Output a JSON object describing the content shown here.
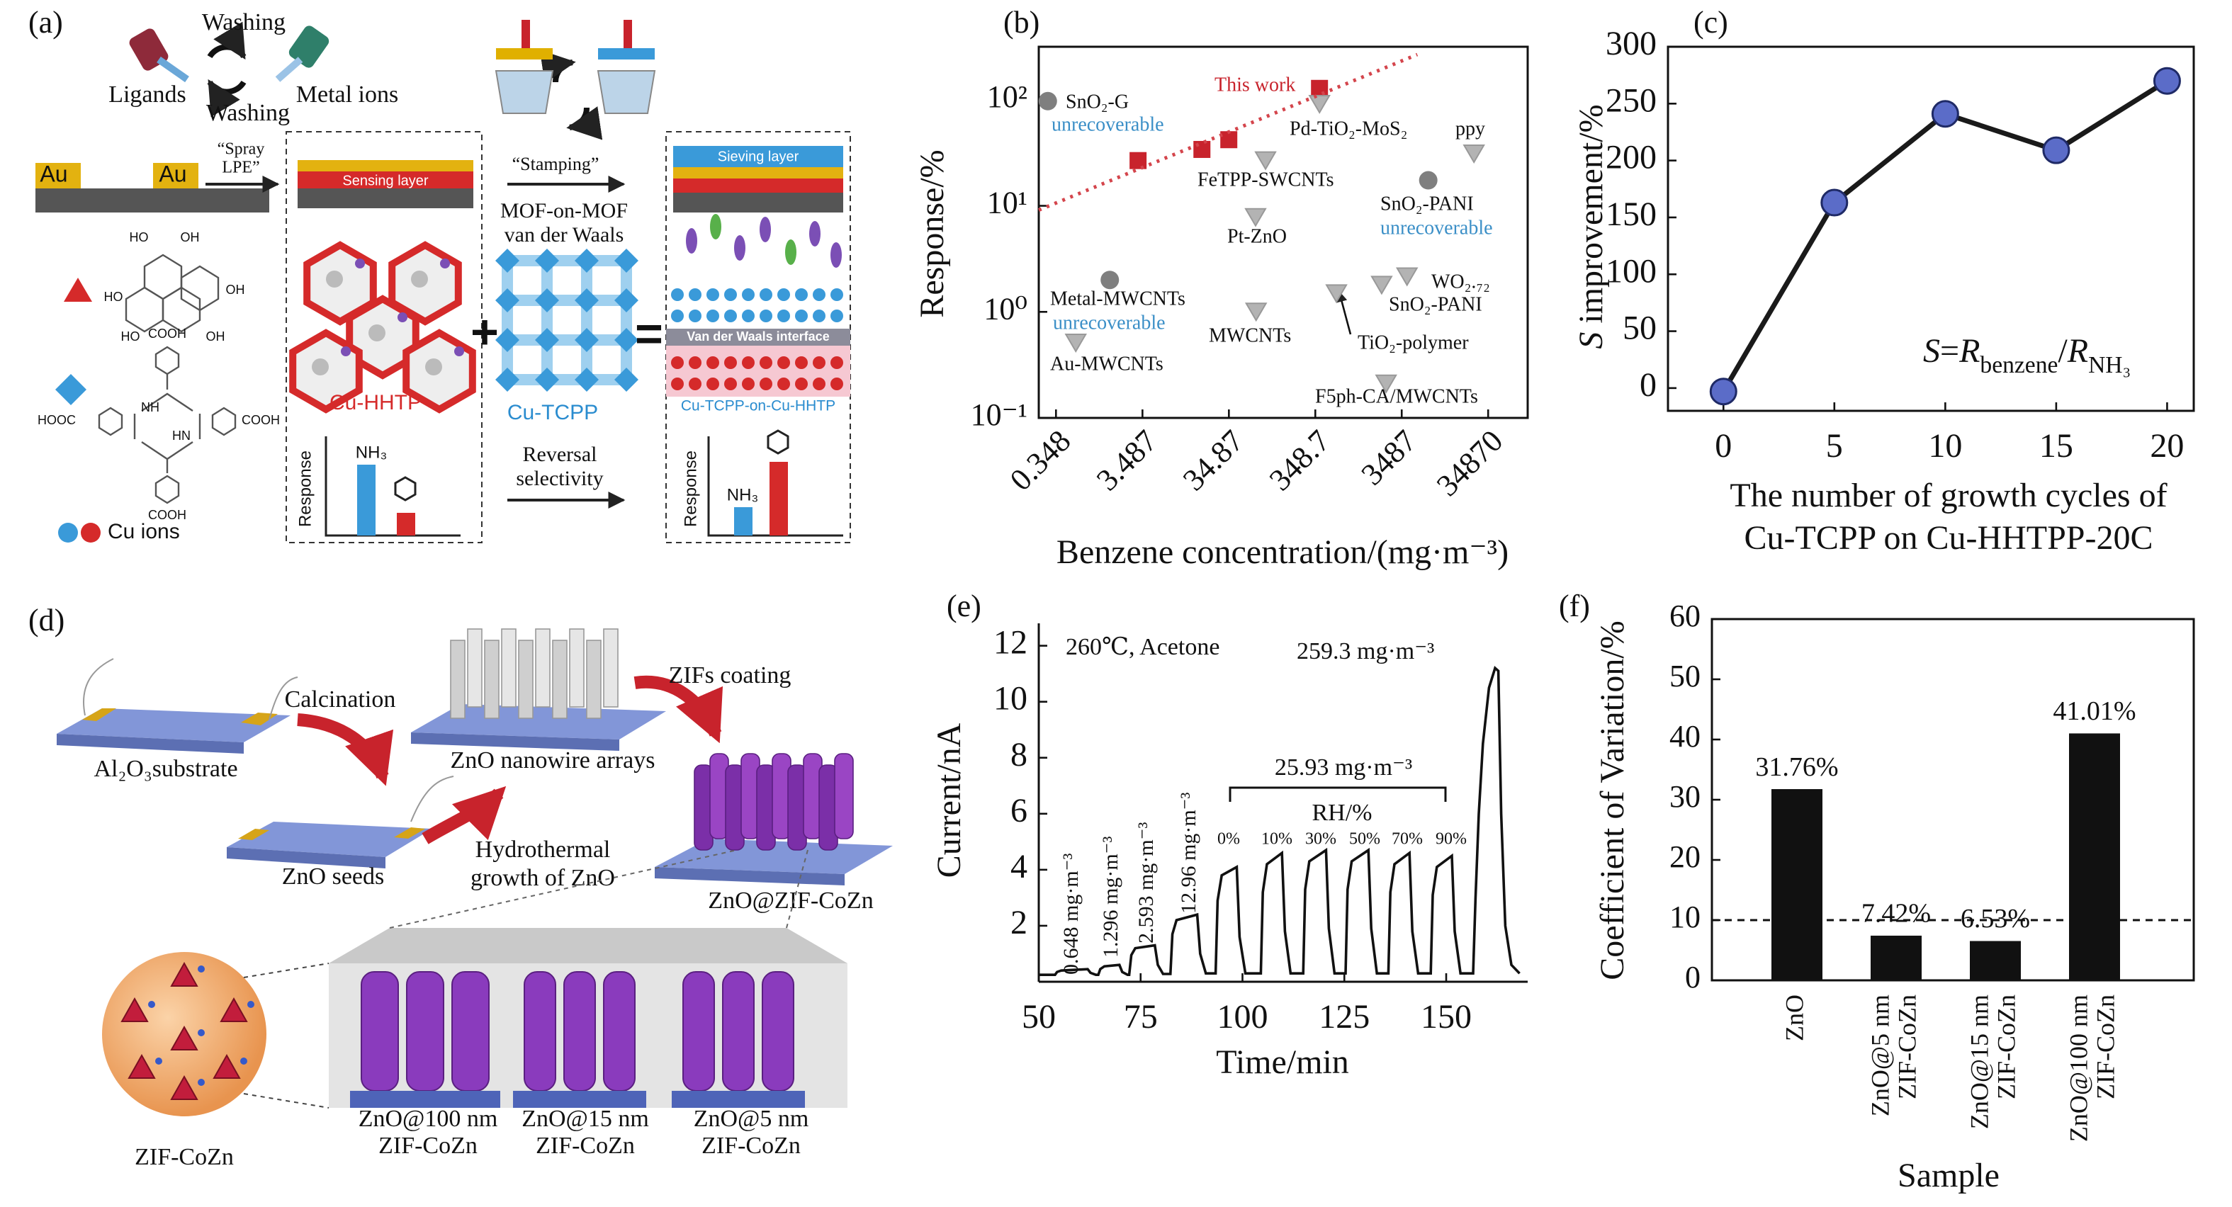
{
  "figure_a": {
    "label": "(a)",
    "washing_top": "Washing",
    "ligands": "Ligands",
    "washing_bottom": "Washing",
    "metal_ions": "Metal ions",
    "electrode": [
      "Au",
      "Au"
    ],
    "spray": [
      "“Spray",
      "LPE”"
    ],
    "sensing_layer": "Sensing layer",
    "stamping": "“Stamping”",
    "mof_on_mof": [
      "MOF-on-MOF",
      "van der Waals"
    ],
    "sieving_layer": "Sieving layer",
    "interface": "Van der Waals interface",
    "cu_hhtp": "Cu-HHTP",
    "cu_tcpp": "Cu-TCPP",
    "composite": "Cu-TCPP-on-Cu-HHTP",
    "response": [
      "Response",
      "Response"
    ],
    "nh3": [
      "NH₃",
      "NH₃"
    ],
    "reversal": [
      "Reversal",
      "selectivity"
    ],
    "cu_ions": "Cu ions",
    "chem": [
      "HO",
      "OH",
      "HO",
      "OH",
      "HO",
      "OH",
      "COOH",
      "HOOC",
      "COOH",
      "NH",
      "HN",
      "COOH"
    ]
  },
  "figure_d": {
    "label": "(d)",
    "calcination": "Calcination",
    "substrate": "Al₂O₃substrate",
    "nanowire": "ZnO nanowire arrays",
    "zifs": "ZIFs coating",
    "seeds": "ZnO seeds",
    "hydrothermal": [
      "Hydrothermal",
      "growth of ZnO"
    ],
    "zno_zif": "ZnO@ZIF-CoZn",
    "zif": "ZIF-CoZn",
    "samples": [
      [
        "ZnO@100 nm",
        "ZIF-CoZn"
      ],
      [
        "ZnO@15 nm",
        "ZIF-CoZn"
      ],
      [
        "ZnO@5 nm",
        "ZIF-CoZn"
      ]
    ]
  },
  "chart_data": [
    {
      "type": "scatter",
      "label": "(b)",
      "xlabel": "Benzene concentration/(mg·m⁻³)",
      "ylabel": "Response/%",
      "xlog": true,
      "ylog": true,
      "xlim": [
        0.22,
        100000
      ],
      "ylim": [
        0.1,
        316
      ],
      "xticks": [
        0.348,
        3.487,
        34.87,
        348.7,
        3487,
        34870
      ],
      "yticks": [
        {
          "value": 0.1,
          "label": "10⁻¹"
        },
        {
          "value": 1,
          "label": "10⁰"
        },
        {
          "value": 10,
          "label": "10¹"
        },
        {
          "value": 100,
          "label": "10²"
        }
      ],
      "series": [
        {
          "name": "This work",
          "marker": "square",
          "color": "#c8232c",
          "x": [
            3.1,
            17,
            34.8,
            390
          ],
          "values": [
            26.7,
            34,
            42,
            128
          ]
        },
        {
          "marker": "circle",
          "color": "#7f7f7f",
          "x": [
            0.28,
            1.46,
            7070
          ],
          "values": [
            97,
            2.0,
            17.4
          ],
          "labels": [
            "SnO₂-G",
            "Metal-MWCNTs",
            "SnO₂-PANI"
          ],
          "notes": [
            "unrecoverable",
            "unrecoverable",
            "unrecoverable"
          ],
          "note_color": "#3b8fc7"
        },
        {
          "marker": "triangle",
          "color": "#b3b3b3",
          "x": [
            390,
            92.6,
            71,
            23900,
            72,
            612,
            4016,
            2043,
            0.59,
            2300
          ],
          "values": [
            91,
            26.7,
            7.8,
            31,
            1.0,
            1.49,
            2.15,
            1.79,
            0.51,
            0.21
          ],
          "labels": [
            "Pd-TiO₂-MoS₂",
            "FeTPP-SWCNTs",
            "Pt-ZnO",
            "ppy",
            "MWCNTs",
            "TiO₂-polymer",
            "WO₂.₇₂",
            "SnO₂-PANI",
            "Au-MWCNTs",
            "F5ph-CA/MWCNTs"
          ]
        },
        {
          "style": "dotted",
          "color": "#d4454c",
          "x": [
            0.22,
            5276
          ],
          "values": [
            9.1,
            267
          ]
        }
      ]
    },
    {
      "type": "line",
      "label": "(c)",
      "xlabel": [
        "The number of growth cycles of",
        "Cu-TCPP on Cu-HHTPP-20C"
      ],
      "ylabel": [
        {
          "text": "S",
          "italic": true
        },
        {
          "text": " improvement/%"
        }
      ],
      "annotation": [
        {
          "text": "S",
          "italic": true
        },
        {
          "text": "="
        },
        {
          "text": "R",
          "italic": true
        },
        {
          "text": "benzene",
          "sub": true
        },
        {
          "text": "/"
        },
        {
          "text": "R",
          "italic": true
        },
        {
          "text": "NH₃",
          "sub": true
        }
      ],
      "x": [
        0,
        5,
        10,
        15,
        20
      ],
      "values": [
        -3,
        163,
        241,
        209,
        270
      ],
      "color": "#5b6cc8",
      "line_color": "#1a1a1a",
      "markers": true,
      "xlim": [
        -2.5,
        21.2
      ],
      "ylim": [
        -20,
        300
      ],
      "xticks": [
        0,
        5,
        10,
        15,
        20
      ],
      "yticks": [
        0,
        50,
        100,
        150,
        200,
        250,
        300
      ]
    },
    {
      "type": "line",
      "label": "(e)",
      "xlabel": "Time/min",
      "ylabel": "Current/nA",
      "color": "#111111",
      "markers": false,
      "x": [
        50,
        54,
        54.5,
        55.5,
        62,
        62.7,
        64,
        64.6,
        65.1,
        66.1,
        69.8,
        70.5,
        71.8,
        72.2,
        72.7,
        73.7,
        78.5,
        79.2,
        80.5,
        82.3,
        82.8,
        83.8,
        88.9,
        89.6,
        91,
        93.4,
        93.9,
        94.9,
        98.6,
        99.3,
        100.7,
        104.5,
        105,
        106,
        109.7,
        110.4,
        111.8,
        114.9,
        115.4,
        116.4,
        120.5,
        121.2,
        122.6,
        125.3,
        125.8,
        126.8,
        130.9,
        131.6,
        133,
        135.8,
        136.3,
        137.3,
        141,
        141.7,
        143.1,
        146.2,
        146.7,
        147.7,
        151.4,
        152.1,
        153.5,
        156.6,
        157.2,
        158,
        159,
        160.5,
        162,
        162.8,
        163.5,
        164.5,
        166,
        168
      ],
      "values": [
        0.25,
        0.25,
        0.35,
        0.4,
        0.45,
        0.32,
        0.25,
        0.25,
        0.45,
        0.55,
        0.6,
        0.35,
        0.25,
        0.25,
        0.95,
        1.2,
        1.3,
        0.6,
        0.28,
        0.28,
        1.7,
        2.2,
        2.4,
        1.0,
        0.3,
        0.3,
        2.9,
        3.8,
        4.1,
        1.6,
        0.3,
        0.3,
        3.2,
        4.2,
        4.6,
        1.8,
        0.3,
        0.3,
        3.3,
        4.3,
        4.7,
        1.9,
        0.3,
        0.3,
        3.3,
        4.3,
        4.7,
        1.9,
        0.3,
        0.3,
        3.2,
        4.2,
        4.6,
        1.8,
        0.3,
        0.3,
        3.1,
        4.1,
        4.5,
        1.8,
        0.3,
        0.3,
        3,
        6,
        8.5,
        10.5,
        11.2,
        11.1,
        6,
        2,
        0.6,
        0.3
      ],
      "xlim": [
        50,
        170
      ],
      "ylim": [
        0,
        12.8
      ],
      "xticks": [
        50,
        75,
        100,
        125,
        150
      ],
      "yticks": [
        2,
        4,
        6,
        8,
        10,
        12
      ],
      "annotations": [
        "260℃, Acetone",
        "259.3 mg·m⁻³",
        "0.648 mg·m⁻³",
        "1.296 mg·m⁻³",
        "2.593 mg·m⁻³",
        "12.96 mg·m⁻³",
        "25.93 mg·m⁻³",
        "RH/%"
      ],
      "rh_labels": [
        "0%",
        "10%",
        "30%",
        "50%",
        "70%",
        "90%"
      ]
    },
    {
      "type": "bar",
      "label": "(f)",
      "xlabel": "Sample",
      "ylabel": "Coefficient of Variation/%",
      "categories": [
        [
          "ZnO"
        ],
        [
          "ZnO@5 nm",
          "ZIF-CoZn"
        ],
        [
          "ZnO@15 nm",
          "ZIF-CoZn"
        ],
        [
          "ZnO@100 nm",
          "ZIF-CoZn"
        ]
      ],
      "values": [
        31.76,
        7.42,
        6.53,
        41.01
      ],
      "value_labels": [
        "31.76%",
        "7.42%",
        "6.53%",
        "41.01%"
      ],
      "color": "#111111",
      "ylim": [
        0,
        60
      ],
      "yticks": [
        0,
        10,
        20,
        30,
        40,
        50,
        60
      ],
      "hline": {
        "value": 10,
        "style": "dashed"
      }
    }
  ]
}
